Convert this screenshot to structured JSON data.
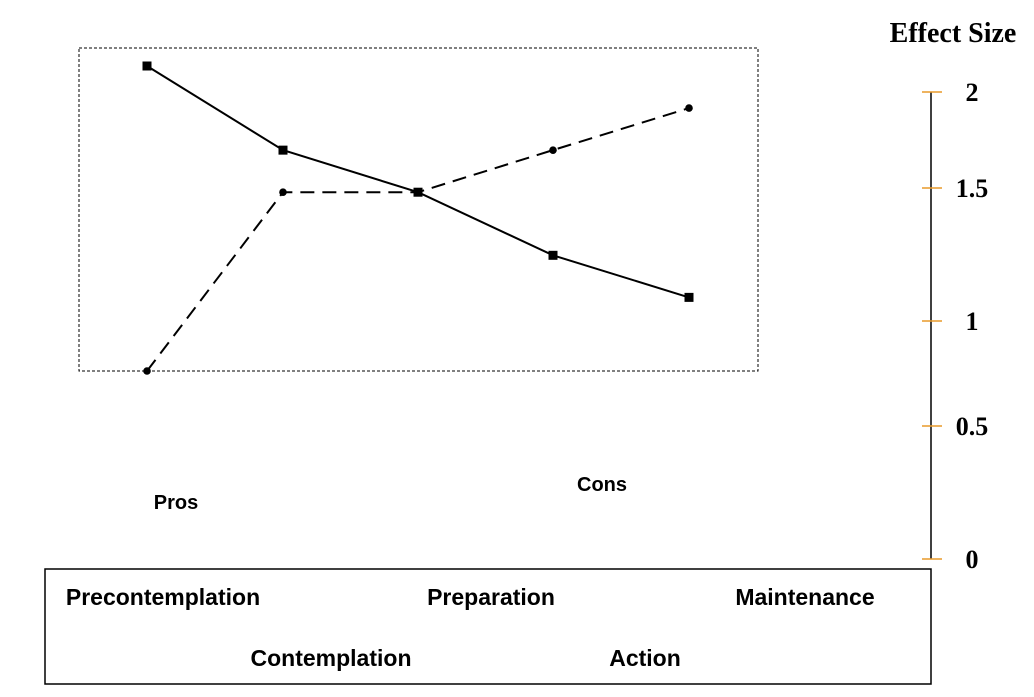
{
  "chart_data": {
    "type": "line",
    "ylabel": "Effect Size",
    "y_ticks": [
      "2",
      "1.5",
      "1",
      "0.5",
      "0"
    ],
    "categories": [
      "Precontemplation",
      "Contemplation",
      "Preparation",
      "Action",
      "Maintenance"
    ],
    "series": [
      {
        "name": "Pros",
        "style": "solid",
        "marker": "square",
        "values": [
          2.0,
          1.6,
          1.4,
          1.1,
          0.9
        ]
      },
      {
        "name": "Cons",
        "style": "dashed",
        "marker": "circle",
        "values": [
          0.55,
          1.4,
          1.4,
          1.6,
          1.8
        ]
      }
    ],
    "colors": {
      "axis": "#000000",
      "tick": "#e89a2a",
      "line": "#000000"
    }
  }
}
